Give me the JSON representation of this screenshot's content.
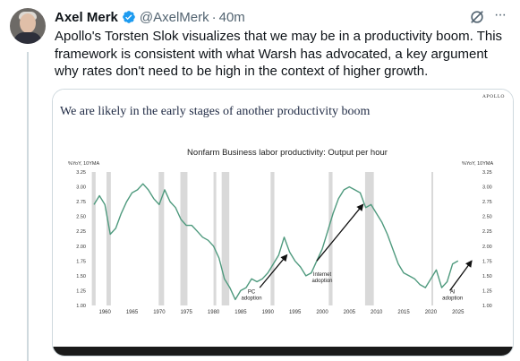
{
  "tweet": {
    "author_name": "Axel Merk",
    "handle": "@AxelMerk",
    "separator": "·",
    "time": "40m",
    "text": "Apollo's Torsten Slok visualizes that we may be in a productivity boom. This framework is consistent with what Warsh has advocated, a key argument why rates don't need to be high in the context of higher growth.",
    "more_label": "···"
  },
  "colors": {
    "verified": "#1d9bf0",
    "line": "#4f9a7e",
    "recession": "#d9d9d9",
    "headline": "#1f2a44"
  },
  "chart_data": {
    "type": "line",
    "headline": "We are likely in the early stages of another productivity boom",
    "brand": "APOLLO",
    "title": "Nonfarm Business labor productivity: Output per hour",
    "ylabel_left": "%YoY, 10YMA",
    "ylabel_right": "%YoY, 10YMA",
    "ylim": [
      1.0,
      3.25
    ],
    "yticks": [
      "3.25",
      "3.00",
      "2.75",
      "2.50",
      "2.25",
      "2.00",
      "1.75",
      "1.50",
      "1.25",
      "1.00"
    ],
    "xticks": [
      "1960",
      "1965",
      "1970",
      "1975",
      "1980",
      "1985",
      "1990",
      "1995",
      "2000",
      "2005",
      "2010",
      "2015",
      "2020",
      "2025"
    ],
    "xlim": [
      1957.5,
      2028.5
    ],
    "recessions": [
      [
        1957.6,
        1958.3
      ],
      [
        1960.3,
        1961.1
      ],
      [
        1969.9,
        1970.9
      ],
      [
        1973.9,
        1975.2
      ],
      [
        1980.0,
        1980.5
      ],
      [
        1981.5,
        1982.9
      ],
      [
        1990.5,
        1991.2
      ],
      [
        2001.2,
        2001.9
      ],
      [
        2007.9,
        2009.5
      ],
      [
        2020.1,
        2020.4
      ]
    ],
    "series": [
      {
        "values": [
          [
            1958,
            2.7
          ],
          [
            1959,
            2.85
          ],
          [
            1960,
            2.7
          ],
          [
            1961,
            2.2
          ],
          [
            1962,
            2.3
          ],
          [
            1963,
            2.55
          ],
          [
            1964,
            2.75
          ],
          [
            1965,
            2.9
          ],
          [
            1966,
            2.95
          ],
          [
            1967,
            3.05
          ],
          [
            1968,
            2.95
          ],
          [
            1969,
            2.8
          ],
          [
            1970,
            2.7
          ],
          [
            1971,
            2.95
          ],
          [
            1972,
            2.75
          ],
          [
            1973,
            2.65
          ],
          [
            1974,
            2.45
          ],
          [
            1975,
            2.35
          ],
          [
            1976,
            2.35
          ],
          [
            1977,
            2.25
          ],
          [
            1978,
            2.15
          ],
          [
            1979,
            2.1
          ],
          [
            1980,
            2.0
          ],
          [
            1981,
            1.8
          ],
          [
            1982,
            1.45
          ],
          [
            1983,
            1.3
          ],
          [
            1984,
            1.1
          ],
          [
            1985,
            1.25
          ],
          [
            1986,
            1.3
          ],
          [
            1987,
            1.45
          ],
          [
            1988,
            1.4
          ],
          [
            1989,
            1.45
          ],
          [
            1990,
            1.55
          ],
          [
            1991,
            1.7
          ],
          [
            1992,
            1.85
          ],
          [
            1993,
            2.15
          ],
          [
            1994,
            1.9
          ],
          [
            1995,
            1.75
          ],
          [
            1996,
            1.65
          ],
          [
            1997,
            1.5
          ],
          [
            1998,
            1.55
          ],
          [
            1999,
            1.75
          ],
          [
            2000,
            1.95
          ],
          [
            2001,
            2.25
          ],
          [
            2002,
            2.55
          ],
          [
            2003,
            2.8
          ],
          [
            2004,
            2.95
          ],
          [
            2005,
            3.0
          ],
          [
            2006,
            2.95
          ],
          [
            2007,
            2.9
          ],
          [
            2008,
            2.65
          ],
          [
            2009,
            2.7
          ],
          [
            2010,
            2.55
          ],
          [
            2011,
            2.4
          ],
          [
            2012,
            2.2
          ],
          [
            2013,
            1.95
          ],
          [
            2014,
            1.7
          ],
          [
            2015,
            1.55
          ],
          [
            2016,
            1.5
          ],
          [
            2017,
            1.45
          ],
          [
            2018,
            1.35
          ],
          [
            2019,
            1.3
          ],
          [
            2020,
            1.45
          ],
          [
            2021,
            1.6
          ],
          [
            2022,
            1.3
          ],
          [
            2023,
            1.4
          ],
          [
            2024,
            1.7
          ],
          [
            2025,
            1.75
          ]
        ]
      }
    ],
    "annotations": [
      {
        "text": [
          "PC",
          "adoption"
        ],
        "x": 1987,
        "y": 1.05,
        "arrow_from": [
          1988.5,
          1.3
        ],
        "arrow_to": [
          1993.5,
          1.85
        ]
      },
      {
        "text": [
          "Internet",
          "adoption"
        ],
        "x": 2000,
        "y": 1.35,
        "arrow_from": [
          1999,
          1.75
        ],
        "arrow_to": [
          2007.5,
          2.7
        ]
      },
      {
        "text": [
          "AI",
          "adoption"
        ],
        "x": 2024,
        "y": 1.05,
        "arrow_from": [
          2023.5,
          1.25
        ],
        "arrow_to": [
          2027.5,
          1.75
        ]
      }
    ]
  }
}
